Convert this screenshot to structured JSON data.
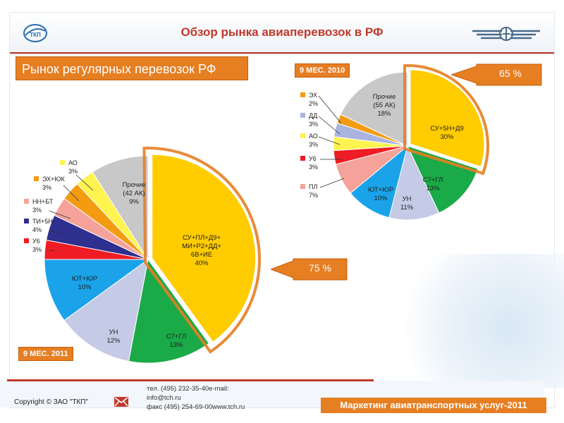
{
  "header": {
    "title": "Обзор рынка авиаперевозок в РФ",
    "logo_text": "ТКП"
  },
  "section": {
    "title": "Рынок регулярных перевозок РФ"
  },
  "callouts": {
    "left_pct": "75 %",
    "right_pct": "65 %"
  },
  "footer": {
    "copyright": "Copyright © ЗАО \"ТКП\"",
    "phone": "тел. (495) 232-35-40e-mail:",
    "email": "info@tch.ru",
    "fax": "факс (495) 254-69-00www.tch.ru",
    "marketing": "Маркетинг авиатранспортных услуг-2011"
  },
  "colors": {
    "orange": "#e67e22",
    "red": "#c0392b",
    "yellow": "#ffcc00",
    "green": "#1aaa48",
    "lavender": "#c5cbe6",
    "blue": "#1aa3e8",
    "pink": "#f4a29a",
    "bright_red": "#ee1c24",
    "navy": "#2e2f8f",
    "light_yellow": "#fff44f",
    "gray": "#c8c8c8",
    "ex_orange": "#f39c12"
  },
  "chart_data": [
    {
      "type": "pie",
      "period": "9 МЕС. 2011",
      "slices": [
        {
          "name": "СУ+ПЛ+Д9+МИ+Р2+ДД+6В+ИЕ",
          "value": 40,
          "label": "40%",
          "color": "#ffcc00"
        },
        {
          "name": "С7+ГЛ",
          "value": 13,
          "label": "13%",
          "color": "#1aaa48"
        },
        {
          "name": "УН",
          "value": 12,
          "label": "12%",
          "color": "#c5cbe6"
        },
        {
          "name": "ЮТ+ЮР",
          "value": 10,
          "label": "10%",
          "color": "#1aa3e8"
        },
        {
          "name": "У6",
          "value": 3,
          "label": "3%",
          "color": "#ee1c24"
        },
        {
          "name": "ТИ+5Н",
          "value": 4,
          "label": "4%",
          "color": "#2e2f8f"
        },
        {
          "name": "НН+БТ",
          "value": 3,
          "label": "3%",
          "color": "#f4a29a"
        },
        {
          "name": "ЭХ+ЮК",
          "value": 3,
          "label": "3%",
          "color": "#f39c12"
        },
        {
          "name": "АО",
          "value": 3,
          "label": "3%",
          "color": "#fff44f"
        },
        {
          "name": "Прочие (42 АК)",
          "value": 9,
          "label": "9%",
          "color": "#c8c8c8"
        }
      ]
    },
    {
      "type": "pie",
      "period": "9 МЕС. 2010",
      "slices": [
        {
          "name": "СУ+5Н+Д9",
          "value": 30,
          "label": "30%",
          "color": "#ffcc00"
        },
        {
          "name": "С7+ГЛ",
          "value": 13,
          "label": "13%",
          "color": "#1aaa48"
        },
        {
          "name": "УН",
          "value": 11,
          "label": "11%",
          "color": "#c5cbe6"
        },
        {
          "name": "ЮТ+ЮР",
          "value": 10,
          "label": "10%",
          "color": "#1aa3e8"
        },
        {
          "name": "ПЛ",
          "value": 7,
          "label": "7%",
          "color": "#f4a29a"
        },
        {
          "name": "У6",
          "value": 3,
          "label": "3%",
          "color": "#ee1c24"
        },
        {
          "name": "АО",
          "value": 3,
          "label": "3%",
          "color": "#fff44f"
        },
        {
          "name": "ДД",
          "value": 3,
          "label": "3%",
          "color": "#aab4e0"
        },
        {
          "name": "ЭХ",
          "value": 2,
          "label": "2%",
          "color": "#f39c12"
        },
        {
          "name": "Прочие (55 АК)",
          "value": 18,
          "label": "18%",
          "color": "#c8c8c8"
        }
      ]
    }
  ]
}
